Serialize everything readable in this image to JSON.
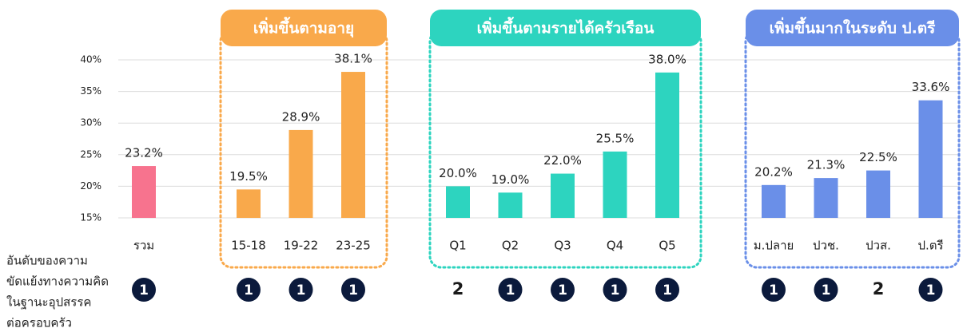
{
  "chart_data": {
    "type": "bar",
    "ylim": [
      15,
      40
    ],
    "yticks": [
      {
        "value": 15,
        "label": "15%"
      },
      {
        "value": 20,
        "label": "20%"
      },
      {
        "value": 25,
        "label": "25%"
      },
      {
        "value": 30,
        "label": "30%"
      },
      {
        "value": 35,
        "label": "35%"
      },
      {
        "value": 40,
        "label": "40%"
      }
    ],
    "grid": true,
    "rank_label": [
      "อันดับของความ",
      "ขัดแย้งทางความคิด",
      "ในฐานะอุปสรรค",
      "ต่อครอบครัว"
    ],
    "groups": [
      {
        "color": "#f7738e",
        "categories": [
          "รวม"
        ],
        "values": [
          23.2
        ],
        "value_labels": [
          "23.2%"
        ],
        "ranks": [
          1
        ]
      },
      {
        "title": "เพิ่มขึ้นตามอายุ",
        "color": "#f9a94b",
        "categories": [
          "15-18",
          "19-22",
          "23-25"
        ],
        "values": [
          19.5,
          28.9,
          38.1
        ],
        "value_labels": [
          "19.5%",
          "28.9%",
          "38.1%"
        ],
        "ranks": [
          1,
          1,
          1
        ]
      },
      {
        "title": "เพิ่มขึ้นตามรายได้ครัวเรือน",
        "color": "#2dd4bf",
        "categories": [
          "Q1",
          "Q2",
          "Q3",
          "Q4",
          "Q5"
        ],
        "values": [
          20.0,
          19.0,
          22.0,
          25.5,
          38.0
        ],
        "value_labels": [
          "20.0%",
          "19.0%",
          "22.0%",
          "25.5%",
          "38.0%"
        ],
        "ranks": [
          2,
          1,
          1,
          1,
          1
        ]
      },
      {
        "title": "เพิ่มขึ้นมากในระดับ ป.ตรี",
        "color": "#6a8fe8",
        "categories": [
          "ม.ปลาย",
          "ปวช.",
          "ปวส.",
          "ป.ตรี"
        ],
        "values": [
          20.2,
          21.3,
          22.5,
          33.6
        ],
        "value_labels": [
          "20.2%",
          "21.3%",
          "22.5%",
          "33.6%"
        ],
        "ranks": [
          1,
          1,
          2,
          1
        ]
      }
    ]
  }
}
